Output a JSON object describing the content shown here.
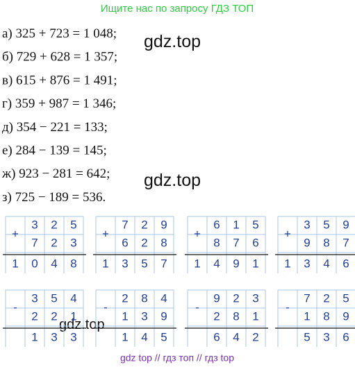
{
  "header": "Ищите нас по запросу ГДЗ ТОП",
  "equations": [
    "а) 325 + 723 = 1 048;",
    "б) 729 + 628 = 1 357;",
    "в) 615 + 876 = 1 491;",
    "г) 359 + 987 = 1 346;",
    "д) 354 − 221 = 133;",
    "е) 284 − 139 = 145;",
    "ж) 923 − 281 = 642;",
    "з) 725 − 189 = 536."
  ],
  "watermarks": [
    "gdz.top",
    "gdz.top",
    "gdz.top"
  ],
  "columns": [
    {
      "sign": "+",
      "top": [
        "3",
        "2",
        "5"
      ],
      "bottom": [
        "7",
        "2",
        "3"
      ],
      "result": [
        "1",
        "0",
        "4",
        "8"
      ]
    },
    {
      "sign": "+",
      "top": [
        "7",
        "2",
        "9"
      ],
      "bottom": [
        "6",
        "2",
        "8"
      ],
      "result": [
        "1",
        "3",
        "5",
        "7"
      ]
    },
    {
      "sign": "+",
      "top": [
        "6",
        "1",
        "5"
      ],
      "bottom": [
        "8",
        "7",
        "6"
      ],
      "result": [
        "1",
        "4",
        "9",
        "1"
      ]
    },
    {
      "sign": "+",
      "top": [
        "3",
        "5",
        "9"
      ],
      "bottom": [
        "9",
        "8",
        "7"
      ],
      "result": [
        "1",
        "3",
        "4",
        "6"
      ]
    },
    {
      "sign": "-",
      "top": [
        "3",
        "5",
        "4"
      ],
      "bottom": [
        "2",
        "2",
        "1"
      ],
      "result": [
        "1",
        "3",
        "3"
      ]
    },
    {
      "sign": "-",
      "top": [
        "2",
        "8",
        "4"
      ],
      "bottom": [
        "1",
        "3",
        "9"
      ],
      "result": [
        "1",
        "4",
        "5"
      ]
    },
    {
      "sign": "-",
      "top": [
        "9",
        "2",
        "3"
      ],
      "bottom": [
        "2",
        "8",
        "1"
      ],
      "result": [
        "6",
        "4",
        "2"
      ]
    },
    {
      "sign": "-",
      "top": [
        "7",
        "2",
        "5"
      ],
      "bottom": [
        "1",
        "8",
        "9"
      ],
      "result": [
        "5",
        "3",
        "6"
      ]
    }
  ],
  "footer": "gdz top // гдз топ // гдз top"
}
